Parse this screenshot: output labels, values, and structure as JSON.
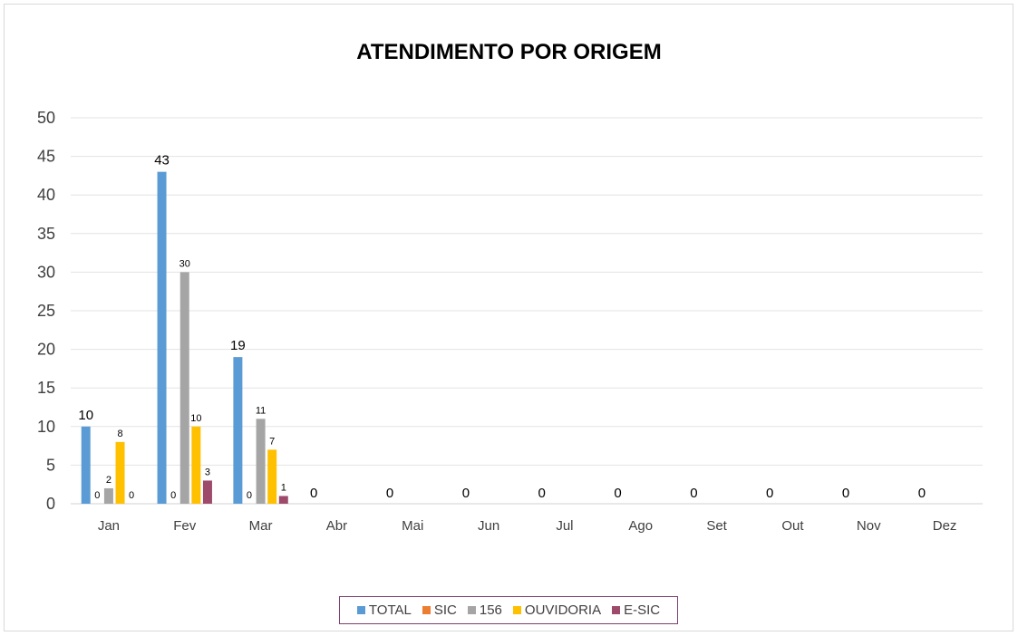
{
  "chart_data": {
    "type": "bar",
    "title": "ATENDIMENTO POR ORIGEM",
    "categories": [
      "Jan",
      "Fev",
      "Mar",
      "Abr",
      "Mai",
      "Jun",
      "Jul",
      "Ago",
      "Set",
      "Out",
      "Nov",
      "Dez"
    ],
    "series": [
      {
        "name": "TOTAL",
        "color": "#5b9bd5",
        "values": [
          10,
          43,
          19,
          0,
          0,
          0,
          0,
          0,
          0,
          0,
          0,
          0
        ]
      },
      {
        "name": "SIC",
        "color": "#ed7d31",
        "values": [
          0,
          0,
          0,
          null,
          null,
          null,
          null,
          null,
          null,
          null,
          null,
          null
        ]
      },
      {
        "name": "156",
        "color": "#a5a5a5",
        "values": [
          2,
          30,
          11,
          null,
          null,
          null,
          null,
          null,
          null,
          null,
          null,
          null
        ]
      },
      {
        "name": "OUVIDORIA",
        "color": "#ffc000",
        "values": [
          8,
          10,
          7,
          null,
          null,
          null,
          null,
          null,
          null,
          null,
          null,
          null
        ]
      },
      {
        "name": "E-SIC",
        "color": "#9e4a6b",
        "values": [
          0,
          3,
          1,
          null,
          null,
          null,
          null,
          null,
          null,
          null,
          null,
          null
        ]
      }
    ],
    "ylim": [
      0,
      50
    ],
    "yticks": [
      0,
      5,
      10,
      15,
      20,
      25,
      30,
      35,
      40,
      45,
      50
    ],
    "grid": true,
    "legend_position": "bottom"
  }
}
